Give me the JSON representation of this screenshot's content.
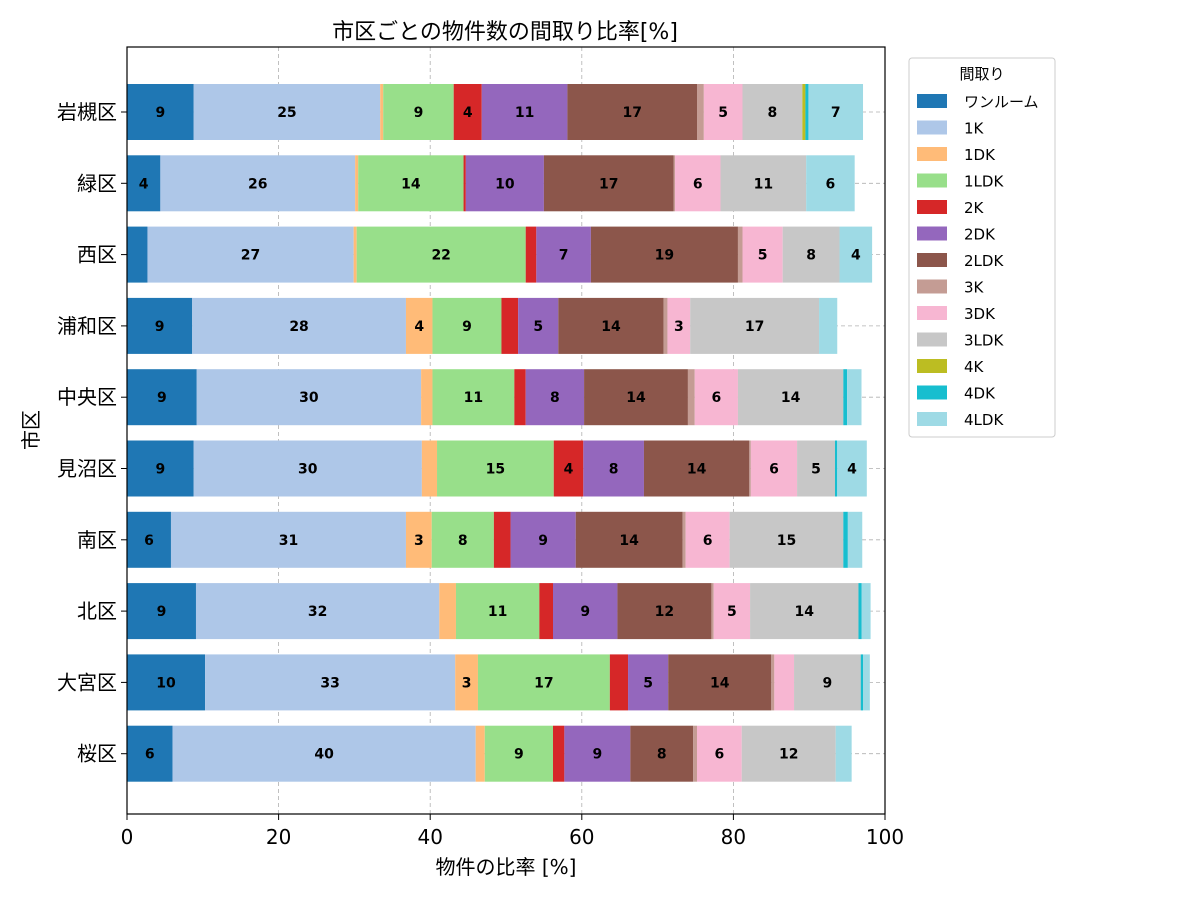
{
  "chart_data": {
    "type": "bar",
    "orientation": "horizontal",
    "stacked": true,
    "title": "市区ごとの物件数の間取り比率[%]",
    "xlabel": "物件の比率 [%]",
    "ylabel": "市区",
    "xlim": [
      0,
      100
    ],
    "xticks": [
      0,
      20,
      40,
      60,
      80,
      100
    ],
    "grid": true,
    "legend_title": "間取り",
    "legend_position": "outside-right-top",
    "categories": [
      "岩槻区",
      "緑区",
      "西区",
      "浦和区",
      "中央区",
      "見沼区",
      "南区",
      "北区",
      "大宮区",
      "桜区"
    ],
    "series": [
      {
        "name": "ワンルーム",
        "color": "#1f77b4",
        "values": [
          8.8,
          4.4,
          2.7,
          8.6,
          9.2,
          8.8,
          5.8,
          9.1,
          10.3,
          6.0
        ]
      },
      {
        "name": "1K",
        "color": "#aec7e8",
        "values": [
          24.6,
          25.7,
          27.2,
          28.2,
          29.6,
          30.1,
          31.0,
          32.1,
          33.0,
          40.0
        ]
      },
      {
        "name": "1DK",
        "color": "#ffbb78",
        "values": [
          0.4,
          0.4,
          0.4,
          3.5,
          1.5,
          2.0,
          3.4,
          2.2,
          3.0,
          1.2
        ]
      },
      {
        "name": "1LDK",
        "color": "#98df8a",
        "values": [
          9.3,
          13.9,
          22.3,
          9.1,
          10.8,
          15.4,
          8.2,
          11.0,
          17.4,
          9.0
        ]
      },
      {
        "name": "2K",
        "color": "#d62728",
        "values": [
          3.7,
          0.3,
          1.4,
          2.2,
          1.5,
          3.9,
          2.2,
          1.8,
          2.4,
          1.5
        ]
      },
      {
        "name": "2DK",
        "color": "#9467bd",
        "values": [
          11.3,
          10.3,
          7.2,
          5.3,
          7.7,
          8.0,
          8.6,
          8.5,
          5.3,
          8.7
        ]
      },
      {
        "name": "2LDK",
        "color": "#8c564b",
        "values": [
          17.1,
          17.1,
          19.4,
          13.9,
          13.7,
          13.9,
          14.1,
          12.4,
          13.6,
          8.3
        ]
      },
      {
        "name": "3K",
        "color": "#c49c94",
        "values": [
          0.9,
          0.2,
          0.6,
          0.5,
          0.9,
          0.2,
          0.4,
          0.3,
          0.4,
          0.5
        ]
      },
      {
        "name": "3DK",
        "color": "#f7b6d2",
        "values": [
          5.1,
          6.0,
          5.3,
          3.0,
          5.7,
          6.1,
          5.8,
          4.8,
          2.6,
          5.9
        ]
      },
      {
        "name": "3LDK",
        "color": "#c7c7c7",
        "values": [
          7.9,
          11.3,
          7.5,
          17.0,
          13.9,
          5.0,
          15.0,
          14.3,
          8.8,
          12.4
        ]
      },
      {
        "name": "4K",
        "color": "#bcbd22",
        "values": [
          0.4,
          0,
          0,
          0,
          0,
          0,
          0,
          0,
          0,
          0
        ]
      },
      {
        "name": "4DK",
        "color": "#17becf",
        "values": [
          0.4,
          0,
          0,
          0,
          0.5,
          0.3,
          0.6,
          0.4,
          0.3,
          0
        ]
      },
      {
        "name": "4LDK",
        "color": "#9edae5",
        "values": [
          7.2,
          6.4,
          4.3,
          2.4,
          1.9,
          3.9,
          1.9,
          1.2,
          0.9,
          2.1
        ]
      }
    ],
    "label_threshold": 3
  }
}
